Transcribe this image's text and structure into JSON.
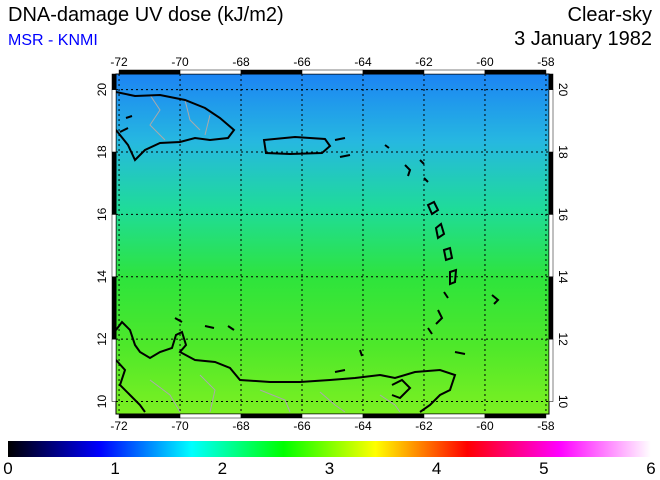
{
  "header": {
    "title": "DNA-damage UV dose (kJ/m2)",
    "source": "MSR - KNMI",
    "sky_condition": "Clear-sky",
    "date": "3 January 1982"
  },
  "map": {
    "lon_range": [
      -72.1,
      -57.9
    ],
    "lat_range": [
      9.6,
      20.5
    ],
    "lon_ticks": [
      -72,
      -70,
      -68,
      -66,
      -64,
      -62,
      -60,
      -58
    ],
    "lat_ticks": [
      10,
      12,
      14,
      16,
      18,
      20
    ],
    "field_colors": [
      "#1c84f4",
      "#26b8e0",
      "#1fdc98",
      "#2ee43c",
      "#4ee82a",
      "#7cf022"
    ]
  },
  "colorbar": {
    "min": 0,
    "max": 6,
    "labels": [
      "0",
      "1",
      "2",
      "3",
      "4",
      "5",
      "6"
    ],
    "stops": [
      "#000000",
      "#0000ff",
      "#00ffff",
      "#00ff00",
      "#ffff00",
      "#ff0000",
      "#ff00ff",
      "#ffffff"
    ]
  }
}
